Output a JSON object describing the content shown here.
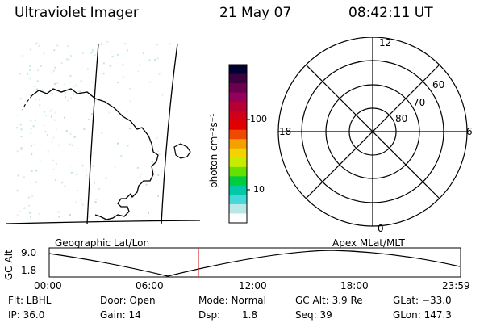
{
  "header": {
    "title": "Ultraviolet Imager",
    "date": "21 May 07",
    "time": "08:42:11 UT"
  },
  "colorbar": {
    "label": "photon cm⁻²s⁻¹",
    "ticks": [
      "100",
      "10"
    ],
    "colors": [
      "#000033",
      "#3a0040",
      "#6a004e",
      "#95005a",
      "#b80030",
      "#d0001a",
      "#e00000",
      "#ef4a00",
      "#f6a000",
      "#f3d400",
      "#c8ec00",
      "#66e000",
      "#00cc40",
      "#00c8a8",
      "#44d8d8",
      "#b8e8e8",
      "#ffffff"
    ]
  },
  "polar": {
    "labels": {
      "top": "12",
      "right": "6",
      "bottom": "0",
      "left": "18"
    },
    "rings": [
      "60",
      "70",
      "80"
    ]
  },
  "map": {
    "label": "Geographic Lat/Lon"
  },
  "orbit": {
    "label_right": "Apex MLat/MLT",
    "ylabel": "GC Alt",
    "y_ticks": [
      "9.0",
      "1.8"
    ],
    "x_ticks": [
      "00:00",
      "06:00",
      "12:00",
      "18:00",
      "23:59"
    ],
    "current_time_hours": 8.7
  },
  "info": {
    "filter": "Flt: LBHL",
    "ip": "IP: 36.0",
    "door": "Door: Open",
    "gain": "Gain: 14",
    "mode": "Mode: Normal",
    "dsp_label": "Dsp:",
    "dsp_value": "1.8",
    "gc_alt": "GC Alt: 3.9 Re",
    "seq": "Seq: 39",
    "glat": "GLat: −33.0",
    "glon": "GLon: 147.3"
  }
}
